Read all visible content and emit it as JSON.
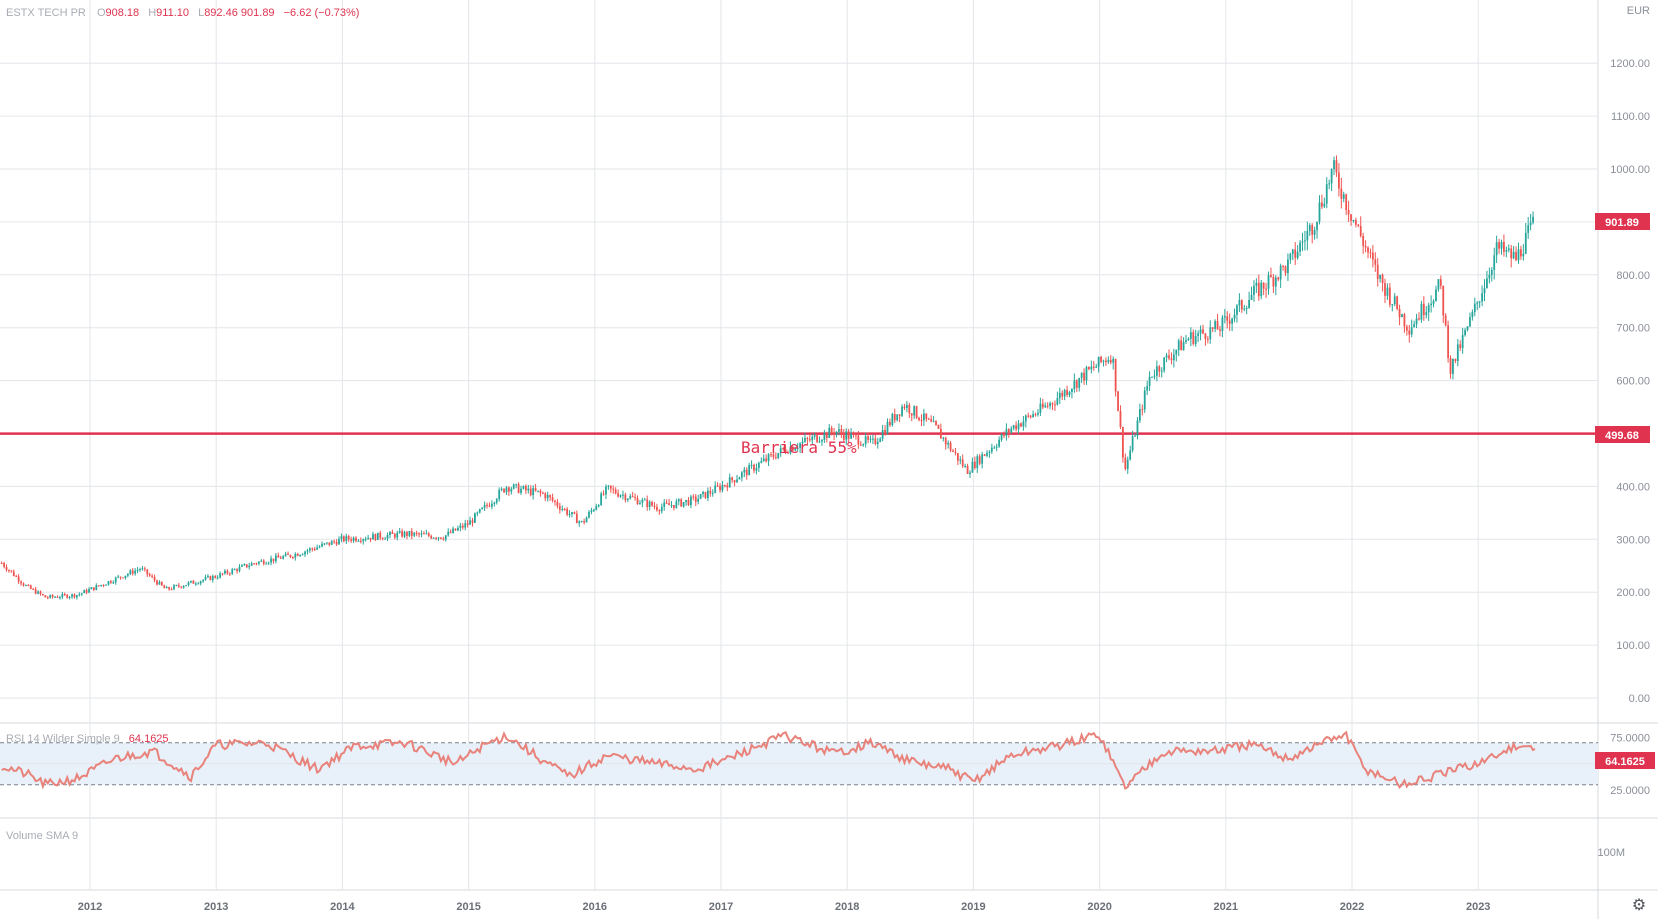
{
  "legend": {
    "symbol": "ESTX TECH PR",
    "open_label": "O",
    "open": "908.18",
    "high_label": "H",
    "high": "911.10",
    "low_label": "L",
    "low": "892.46",
    "close_label": "",
    "close": "901.89",
    "change": "−6.62 (−0.73%)"
  },
  "currency": "EUR",
  "last_price_tag": "901.89",
  "barrier_tag": "499.68",
  "annotation": "Barriera 55%",
  "rsi_legend": {
    "label": "RSI 14 Wilder Simple 9",
    "value": "64.1625"
  },
  "rsi_tag": "64.1625",
  "volume_legend": "Volume SMA 9",
  "volume_axis_label": "100M",
  "icons": {
    "settings": "gear-icon"
  },
  "colors": {
    "up": "#26a69a",
    "down": "#ef5350",
    "barrier": "#e0334f",
    "rsi_line": "#e8827a",
    "rsi_band": "#e8f0f9"
  },
  "chart_data": [
    {
      "type": "candlestick",
      "title": "ESTX TECH PR",
      "ylim": [
        0,
        1200
      ],
      "y_ticks": [
        "0.00",
        "100.00",
        "200.00",
        "300.00",
        "400.00",
        "500.00",
        "600.00",
        "700.00",
        "800.00",
        "900.00",
        "1000.00",
        "1100.00",
        "1200.00"
      ],
      "x_ticks": [
        "2012",
        "2013",
        "2014",
        "2015",
        "2016",
        "2017",
        "2018",
        "2019",
        "2020",
        "2021",
        "2022",
        "2023"
      ],
      "x_range": [
        2011.3,
        2023.45
      ],
      "series": [
        {
          "x": [
            2011.3,
            2011.5,
            2011.65,
            2011.9,
            2012.4,
            2012.6,
            2013.0,
            2013.3,
            2013.6,
            2014.0,
            2014.5,
            2014.8,
            2015.0,
            2015.3,
            2015.6,
            2015.9,
            2016.1,
            2016.5,
            2016.8,
            2017.0,
            2017.5,
            2017.9,
            2018.2,
            2018.45,
            2018.7,
            2018.95,
            2019.3,
            2019.6,
            2019.9,
            2020.1,
            2020.2,
            2020.4,
            2020.7,
            2020.95,
            2021.2,
            2021.5,
            2021.7,
            2021.85,
            2021.95,
            2022.2,
            2022.45,
            2022.7,
            2022.78,
            2022.95,
            2023.15,
            2023.3,
            2023.45
          ],
          "values": [
            255,
            210,
            190,
            195,
            245,
            205,
            230,
            255,
            270,
            300,
            310,
            305,
            330,
            400,
            385,
            330,
            395,
            360,
            375,
            400,
            470,
            505,
            480,
            555,
            510,
            430,
            510,
            555,
            615,
            650,
            430,
            610,
            680,
            700,
            760,
            820,
            900,
            1000,
            940,
            800,
            700,
            780,
            620,
            720,
            850,
            830,
            902
          ]
        }
      ],
      "barrier": {
        "value": 499.68,
        "label": "Barriera 55%"
      }
    },
    {
      "type": "line",
      "title": "RSI 14 Wilder Simple 9",
      "ylim": [
        20,
        80
      ],
      "y_ticks": [
        "25.0000",
        "50.0000",
        "75.0000"
      ],
      "bands": [
        30,
        70
      ],
      "series": [
        {
          "name": "RSI 14 Wilder Simple 9",
          "x": [
            2011.3,
            2011.5,
            2011.65,
            2011.9,
            2012.2,
            2012.5,
            2012.8,
            2013.0,
            2013.4,
            2013.8,
            2014.1,
            2014.5,
            2014.9,
            2015.1,
            2015.3,
            2015.6,
            2015.8,
            2016.1,
            2016.5,
            2016.8,
            2017.0,
            2017.5,
            2017.9,
            2018.2,
            2018.5,
            2018.8,
            2019.0,
            2019.3,
            2019.7,
            2020.0,
            2020.2,
            2020.5,
            2020.9,
            2021.2,
            2021.5,
            2021.8,
            2021.95,
            2022.1,
            2022.4,
            2022.6,
            2022.9,
            2023.1,
            2023.3,
            2023.45
          ],
          "values": [
            48,
            40,
            30,
            36,
            55,
            62,
            38,
            68,
            70,
            45,
            67,
            70,
            50,
            66,
            77,
            52,
            38,
            58,
            50,
            45,
            52,
            77,
            60,
            70,
            52,
            45,
            33,
            58,
            68,
            78,
            28,
            62,
            62,
            68,
            55,
            72,
            78,
            45,
            30,
            36,
            47,
            55,
            68,
            64.16
          ]
        }
      ]
    },
    {
      "type": "bar",
      "title": "Volume SMA 9",
      "y_ticks": [
        "100M"
      ]
    }
  ]
}
